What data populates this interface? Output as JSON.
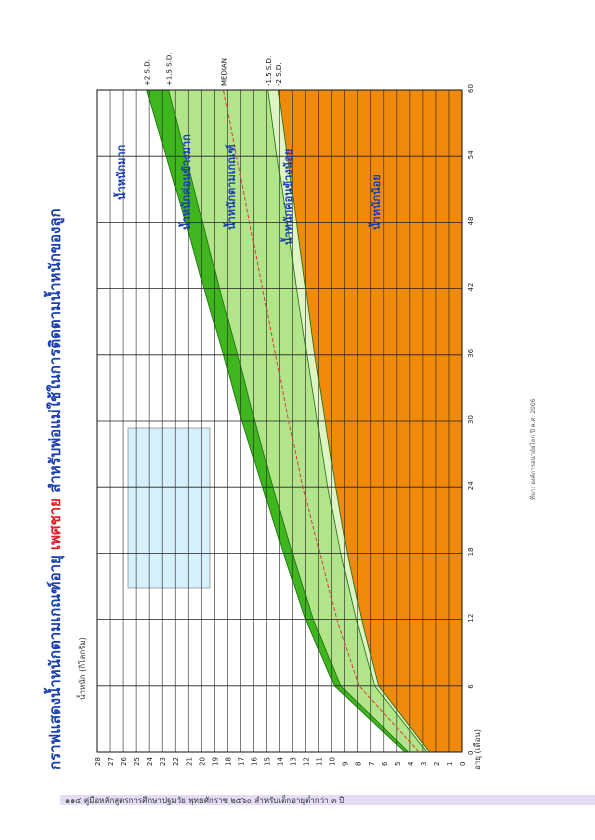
{
  "chart_data": {
    "type": "area",
    "title": "กราฟแสดงน้ำหนักตามเกณฑ์อายุ ",
    "title_highlight": "เพศชาย",
    "title_rest": " สำหรับพ่อแม่ใช้ในการติดตามน้ำหนักของลูก",
    "x_label": "อายุ (เดือน)",
    "y_label": "น้ำหนัก (กิโลกรัม)",
    "x": [
      0,
      6,
      12,
      18,
      24,
      30,
      36,
      42,
      48,
      54,
      60
    ],
    "xlim": [
      0,
      60
    ],
    "xticks": [
      0,
      6,
      12,
      18,
      24,
      30,
      36,
      42,
      48,
      54,
      60
    ],
    "ylim": [
      0,
      28
    ],
    "yticks": [
      0,
      1,
      2,
      3,
      4,
      5,
      6,
      7,
      8,
      9,
      10,
      11,
      12,
      13,
      14,
      15,
      16,
      17,
      18,
      19,
      20,
      21,
      22,
      23,
      24,
      25,
      26,
      27,
      28
    ],
    "grid": true,
    "series": [
      {
        "name": "+2 S.D.",
        "color": "#3fb61e",
        "values": [
          4.4,
          9.8,
          12.0,
          13.7,
          15.3,
          16.9,
          18.3,
          19.8,
          21.2,
          22.7,
          24.2
        ]
      },
      {
        "name": "+1.5 S.D.",
        "color": "#b2e58a",
        "values": [
          4.1,
          9.3,
          11.4,
          13.0,
          14.5,
          15.9,
          17.2,
          18.6,
          19.9,
          21.2,
          22.5
        ]
      },
      {
        "name": "MEDIAN",
        "color": "#d24040",
        "line": true,
        "values": [
          3.3,
          7.9,
          9.6,
          10.9,
          12.2,
          13.3,
          14.3,
          15.3,
          16.3,
          17.3,
          18.3
        ]
      },
      {
        "name": "-1.5 S.D.",
        "color": "#dff3c4",
        "values": [
          2.7,
          6.7,
          8.1,
          9.3,
          10.3,
          11.1,
          11.9,
          12.7,
          13.4,
          14.2,
          14.9
        ]
      },
      {
        "name": "-2 S.D.",
        "color": "#f08a0c",
        "values": [
          2.5,
          6.4,
          7.7,
          8.8,
          9.7,
          10.5,
          11.3,
          12.0,
          12.7,
          13.4,
          14.1
        ]
      }
    ],
    "zones": [
      "น้ำหนักมาก",
      "น้ำหนักค่อนข้างมาก",
      "น้ำหนักตามเกณฑ์",
      "น้ำหนักค่อนข้างน้อย",
      "น้ำหนักน้อย"
    ],
    "source": "ที่มา: องค์การอนามัยโลก ปี ค.ศ. 2006"
  },
  "footer": "๑๑๔ คู่มือหลักสูตรการศึกษาปฐมวัย พุทธศักราช ๒๕๖๐ สำหรับเด็กอายุต่ำกว่า ๓ ปี"
}
